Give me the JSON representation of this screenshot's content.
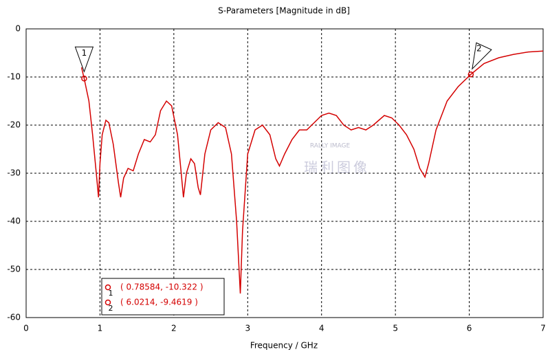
{
  "chart_data": {
    "type": "line",
    "title": "S-Parameters [Magnitude in dB]",
    "x_label": "Frequency / GHz",
    "xlim": [
      0,
      7
    ],
    "ylim": [
      -60,
      0
    ],
    "xticks": [
      0,
      1,
      2,
      3,
      4,
      5,
      6,
      7
    ],
    "yticks": [
      -60,
      -50,
      -40,
      -30,
      -20,
      -10,
      0
    ],
    "grid": true,
    "series": [
      {
        "color": "#d40000",
        "x": [
          0.75,
          0.78584,
          0.85,
          0.9,
          0.95,
          0.98,
          1.0,
          1.03,
          1.08,
          1.12,
          1.18,
          1.25,
          1.28,
          1.32,
          1.38,
          1.45,
          1.52,
          1.6,
          1.68,
          1.75,
          1.82,
          1.9,
          1.97,
          2.05,
          2.1,
          2.13,
          2.17,
          2.23,
          2.28,
          2.33,
          2.36,
          2.42,
          2.5,
          2.6,
          2.7,
          2.78,
          2.85,
          2.9,
          2.93,
          3.0,
          3.1,
          3.2,
          3.3,
          3.38,
          3.43,
          3.5,
          3.6,
          3.7,
          3.8,
          3.9,
          4.0,
          4.1,
          4.2,
          4.3,
          4.4,
          4.5,
          4.6,
          4.7,
          4.85,
          4.95,
          5.05,
          5.15,
          5.25,
          5.33,
          5.4,
          5.45,
          5.55,
          5.7,
          5.85,
          6.0214,
          6.2,
          6.4,
          6.6,
          6.8,
          7.0
        ],
        "values": [
          -8,
          -10.322,
          -15,
          -22,
          -30,
          -35,
          -28,
          -22,
          -19,
          -19.5,
          -24,
          -32,
          -35,
          -31,
          -29,
          -29.5,
          -26,
          -23,
          -23.5,
          -22,
          -17,
          -15,
          -16,
          -22,
          -30,
          -35,
          -30,
          -27,
          -28,
          -33,
          -34.5,
          -26,
          -21,
          -19.5,
          -20.5,
          -26,
          -40,
          -55,
          -42,
          -26,
          -21,
          -20,
          -22,
          -27,
          -28.5,
          -26,
          -23,
          -21,
          -21,
          -19.5,
          -18,
          -17.5,
          -18,
          -20,
          -21,
          -20.5,
          -21,
          -20,
          -18,
          -18.5,
          -20,
          -22,
          -25,
          -29,
          -30.8,
          -28,
          -21,
          -15,
          -12,
          -9.4619,
          -7.2,
          -6,
          -5.3,
          -4.8,
          -4.6
        ]
      }
    ],
    "markers": [
      {
        "id": "1",
        "x": 0.78584,
        "y": -10.322,
        "label": "( 0.78584, -10.322 )"
      },
      {
        "id": "2",
        "x": 6.0214,
        "y": -9.4619,
        "label": "( 6.0214, -9.4619 )"
      }
    ],
    "watermark": {
      "cn": "瑞利图像",
      "en": "RALLY IMAGE"
    }
  }
}
